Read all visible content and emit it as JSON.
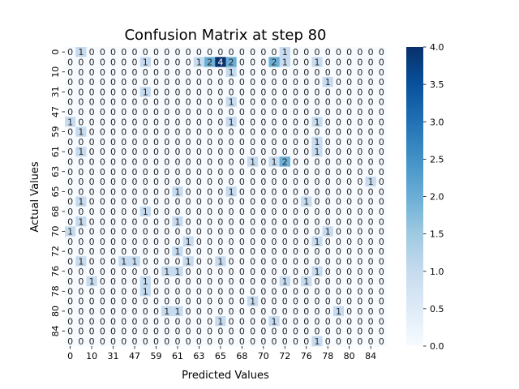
{
  "chart_data": {
    "type": "heatmap",
    "title": "Confusion Matrix at step 80",
    "xlabel": "Predicted Values",
    "ylabel": "Actual Values",
    "x_tick_labels": [
      "0",
      "10",
      "31",
      "47",
      "59",
      "61",
      "63",
      "65",
      "68",
      "70",
      "72",
      "76",
      "78",
      "80",
      "84"
    ],
    "y_tick_labels": [
      "0",
      "10",
      "31",
      "47",
      "59",
      "61",
      "63",
      "65",
      "68",
      "70",
      "72",
      "76",
      "78",
      "80",
      "84"
    ],
    "n_classes": 30,
    "colormap": "Blues",
    "color_range": [
      0,
      4
    ],
    "colorbar_ticks": [
      "0.0",
      "0.5",
      "1.0",
      "1.5",
      "2.0",
      "2.5",
      "3.0",
      "3.5",
      "4.0"
    ],
    "matrix": [
      [
        0,
        1,
        0,
        0,
        0,
        0,
        0,
        0,
        0,
        0,
        0,
        0,
        0,
        0,
        0,
        0,
        0,
        0,
        0,
        0,
        1,
        0,
        0,
        0,
        0,
        0,
        0,
        0,
        0,
        0
      ],
      [
        0,
        0,
        0,
        0,
        0,
        0,
        0,
        1,
        0,
        0,
        0,
        0,
        1,
        2,
        4,
        2,
        0,
        0,
        0,
        2,
        1,
        0,
        0,
        1,
        0,
        0,
        0,
        0,
        0,
        0
      ],
      [
        0,
        0,
        0,
        0,
        0,
        0,
        0,
        0,
        0,
        0,
        0,
        0,
        0,
        0,
        0,
        1,
        0,
        0,
        0,
        0,
        0,
        0,
        0,
        0,
        0,
        0,
        0,
        0,
        0,
        0
      ],
      [
        0,
        0,
        0,
        0,
        0,
        0,
        0,
        0,
        0,
        0,
        0,
        0,
        0,
        0,
        0,
        0,
        0,
        0,
        0,
        0,
        0,
        0,
        0,
        0,
        1,
        0,
        0,
        0,
        0,
        0
      ],
      [
        0,
        0,
        0,
        0,
        0,
        0,
        0,
        1,
        0,
        0,
        0,
        0,
        0,
        0,
        0,
        0,
        0,
        0,
        0,
        0,
        0,
        0,
        0,
        0,
        0,
        0,
        0,
        0,
        0,
        0
      ],
      [
        0,
        0,
        0,
        0,
        0,
        0,
        0,
        0,
        0,
        0,
        0,
        0,
        0,
        0,
        0,
        1,
        0,
        0,
        0,
        0,
        0,
        0,
        0,
        0,
        0,
        0,
        0,
        0,
        0,
        0
      ],
      [
        0,
        0,
        0,
        0,
        0,
        0,
        0,
        0,
        0,
        0,
        0,
        0,
        0,
        0,
        0,
        0,
        0,
        0,
        0,
        0,
        0,
        0,
        0,
        0,
        0,
        0,
        0,
        0,
        0,
        0
      ],
      [
        1,
        0,
        0,
        0,
        0,
        0,
        0,
        0,
        0,
        0,
        0,
        0,
        0,
        0,
        0,
        1,
        0,
        0,
        0,
        0,
        0,
        0,
        0,
        1,
        0,
        0,
        0,
        0,
        0,
        0
      ],
      [
        0,
        1,
        0,
        0,
        0,
        0,
        0,
        0,
        0,
        0,
        0,
        0,
        0,
        0,
        0,
        0,
        0,
        0,
        0,
        0,
        0,
        0,
        0,
        0,
        0,
        0,
        0,
        0,
        0,
        0
      ],
      [
        0,
        0,
        0,
        0,
        0,
        0,
        0,
        0,
        0,
        0,
        0,
        0,
        0,
        0,
        0,
        0,
        0,
        0,
        0,
        0,
        0,
        0,
        0,
        1,
        0,
        0,
        0,
        0,
        0,
        0
      ],
      [
        0,
        1,
        0,
        0,
        0,
        0,
        0,
        0,
        0,
        0,
        0,
        0,
        0,
        0,
        0,
        0,
        0,
        0,
        0,
        0,
        0,
        0,
        0,
        1,
        0,
        0,
        0,
        0,
        0,
        0
      ],
      [
        0,
        0,
        0,
        0,
        0,
        0,
        0,
        0,
        0,
        0,
        0,
        0,
        0,
        0,
        0,
        0,
        0,
        1,
        0,
        1,
        2,
        0,
        0,
        0,
        0,
        0,
        0,
        0,
        0,
        0
      ],
      [
        0,
        0,
        0,
        0,
        0,
        0,
        0,
        0,
        0,
        0,
        0,
        0,
        0,
        0,
        0,
        0,
        0,
        0,
        0,
        0,
        0,
        0,
        0,
        0,
        0,
        0,
        0,
        0,
        0,
        0
      ],
      [
        0,
        0,
        0,
        0,
        0,
        0,
        0,
        0,
        0,
        0,
        0,
        0,
        0,
        0,
        0,
        0,
        0,
        0,
        0,
        0,
        0,
        0,
        0,
        0,
        0,
        0,
        0,
        0,
        1,
        0
      ],
      [
        0,
        0,
        0,
        0,
        0,
        0,
        0,
        0,
        0,
        0,
        1,
        0,
        0,
        0,
        0,
        1,
        0,
        0,
        0,
        0,
        0,
        0,
        0,
        0,
        0,
        0,
        0,
        0,
        0,
        0
      ],
      [
        0,
        1,
        0,
        0,
        0,
        0,
        0,
        0,
        0,
        0,
        0,
        0,
        0,
        0,
        0,
        0,
        0,
        0,
        0,
        0,
        0,
        0,
        1,
        0,
        0,
        0,
        0,
        0,
        0,
        0
      ],
      [
        0,
        0,
        0,
        0,
        0,
        0,
        0,
        1,
        0,
        0,
        0,
        0,
        0,
        0,
        0,
        0,
        0,
        0,
        0,
        0,
        0,
        0,
        0,
        0,
        0,
        0,
        0,
        0,
        0,
        0
      ],
      [
        0,
        1,
        0,
        0,
        0,
        0,
        0,
        0,
        0,
        0,
        1,
        0,
        0,
        0,
        0,
        0,
        0,
        0,
        0,
        0,
        0,
        0,
        0,
        0,
        0,
        0,
        0,
        0,
        0,
        0
      ],
      [
        1,
        0,
        0,
        0,
        0,
        0,
        0,
        0,
        0,
        0,
        0,
        0,
        0,
        0,
        0,
        0,
        0,
        0,
        0,
        0,
        0,
        0,
        0,
        0,
        1,
        0,
        0,
        0,
        0,
        0
      ],
      [
        0,
        0,
        0,
        0,
        0,
        0,
        0,
        0,
        0,
        0,
        0,
        1,
        0,
        0,
        0,
        0,
        0,
        0,
        0,
        0,
        0,
        0,
        0,
        1,
        0,
        0,
        0,
        0,
        0,
        0
      ],
      [
        0,
        0,
        0,
        0,
        0,
        0,
        0,
        0,
        0,
        0,
        1,
        0,
        0,
        0,
        0,
        0,
        0,
        0,
        0,
        0,
        0,
        0,
        0,
        0,
        0,
        0,
        0,
        0,
        0,
        0
      ],
      [
        0,
        1,
        0,
        0,
        0,
        1,
        1,
        0,
        0,
        0,
        0,
        1,
        0,
        0,
        1,
        0,
        0,
        0,
        0,
        0,
        0,
        0,
        0,
        0,
        0,
        0,
        0,
        0,
        0,
        0
      ],
      [
        0,
        0,
        0,
        0,
        0,
        0,
        0,
        0,
        0,
        1,
        1,
        0,
        0,
        0,
        0,
        0,
        0,
        0,
        0,
        0,
        0,
        0,
        0,
        1,
        0,
        0,
        0,
        0,
        0,
        0
      ],
      [
        0,
        0,
        1,
        0,
        0,
        0,
        0,
        1,
        0,
        0,
        0,
        0,
        0,
        0,
        0,
        0,
        0,
        0,
        0,
        0,
        1,
        0,
        1,
        0,
        0,
        0,
        0,
        0,
        0,
        0
      ],
      [
        0,
        0,
        0,
        0,
        0,
        0,
        0,
        1,
        0,
        0,
        0,
        0,
        0,
        0,
        0,
        0,
        0,
        0,
        0,
        0,
        0,
        0,
        0,
        0,
        0,
        0,
        0,
        0,
        0,
        0
      ],
      [
        0,
        0,
        0,
        0,
        0,
        0,
        0,
        0,
        0,
        0,
        0,
        0,
        0,
        0,
        0,
        0,
        0,
        1,
        0,
        0,
        0,
        0,
        0,
        0,
        0,
        0,
        0,
        0,
        0,
        0
      ],
      [
        0,
        0,
        0,
        0,
        0,
        0,
        0,
        0,
        0,
        1,
        1,
        0,
        0,
        0,
        0,
        0,
        0,
        0,
        0,
        0,
        0,
        0,
        0,
        0,
        0,
        1,
        0,
        0,
        0,
        0
      ],
      [
        0,
        0,
        0,
        0,
        0,
        0,
        0,
        0,
        0,
        0,
        0,
        0,
        0,
        0,
        1,
        0,
        0,
        0,
        0,
        1,
        0,
        0,
        0,
        0,
        0,
        0,
        0,
        0,
        0,
        0
      ],
      [
        0,
        0,
        0,
        0,
        0,
        0,
        0,
        0,
        0,
        0,
        0,
        0,
        0,
        0,
        0,
        0,
        0,
        0,
        0,
        0,
        0,
        0,
        0,
        0,
        0,
        0,
        0,
        0,
        0,
        0
      ],
      [
        0,
        0,
        0,
        0,
        0,
        0,
        0,
        0,
        0,
        0,
        0,
        0,
        0,
        0,
        0,
        0,
        0,
        0,
        0,
        0,
        0,
        0,
        0,
        1,
        0,
        0,
        0,
        0,
        0,
        0
      ]
    ]
  }
}
